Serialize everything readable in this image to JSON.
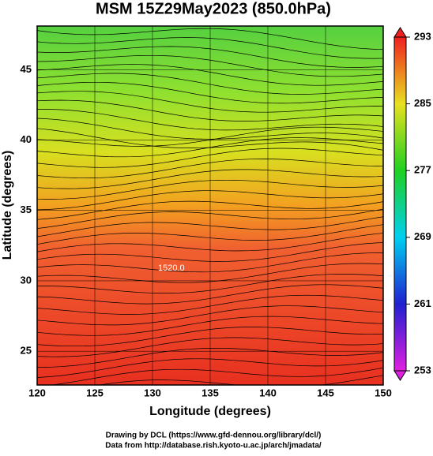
{
  "title": "MSM 15Z29May2023 (850.0hPa)",
  "x_axis": {
    "label": "Longitude (degrees)",
    "lim": [
      120,
      150
    ],
    "ticks": [
      120,
      125,
      130,
      135,
      140,
      145,
      150
    ]
  },
  "y_axis": {
    "label": "Latitude  (degrees)",
    "lim": [
      22.6,
      48.1
    ],
    "ticks": [
      25,
      30,
      35,
      40,
      45
    ]
  },
  "colorbar": {
    "lim": [
      253,
      293
    ],
    "ticks": [
      253,
      261,
      269,
      277,
      285,
      293
    ]
  },
  "contour_label": "1520.0",
  "footer": {
    "line1": "Drawing by DCL (https://www.gfd-dennou.org/library/dcl/)",
    "line2": "Data from http://database.rish.kyoto-u.ac.jp/arch/jmadata/"
  }
}
